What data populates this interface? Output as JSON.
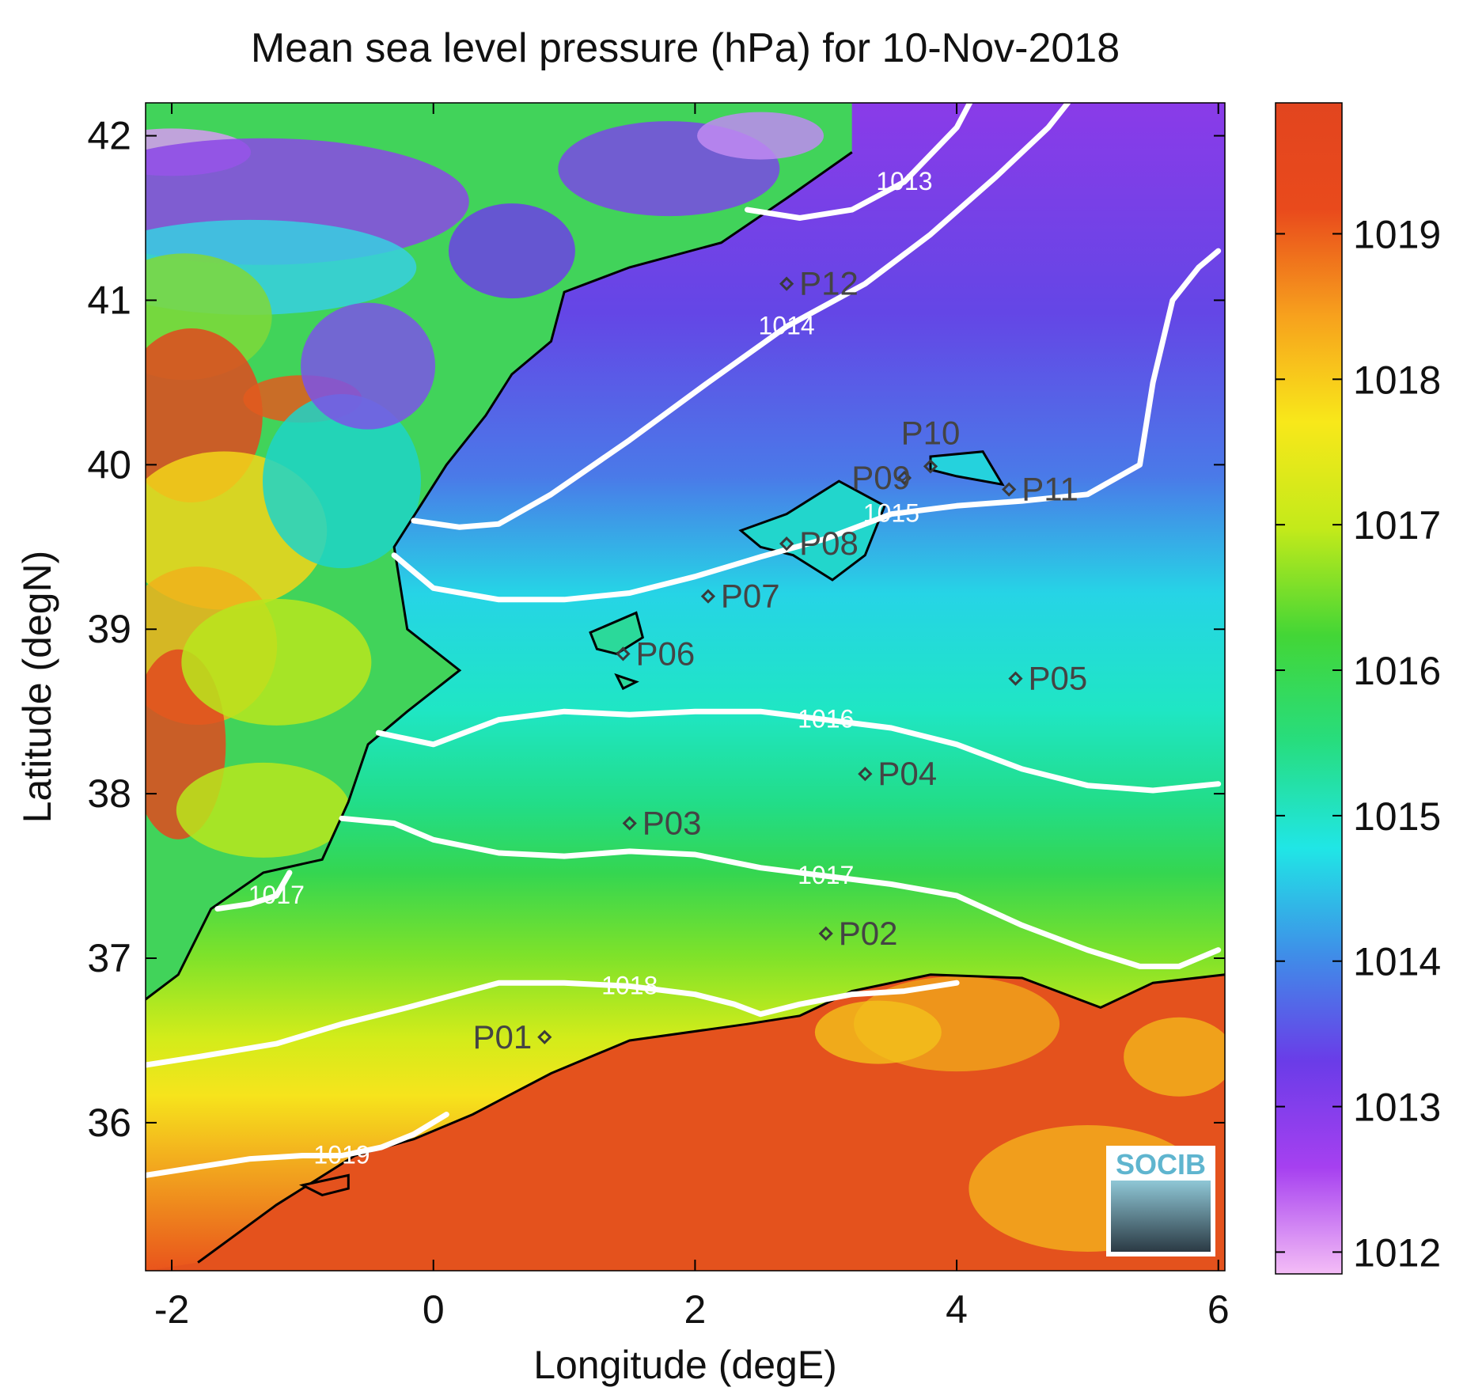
{
  "title": "Mean sea level pressure (hPa) for 10-Nov-2018",
  "xlabel": "Longitude (degE)",
  "ylabel": "Latitude (degN)",
  "x_ticks": [
    "-2",
    "0",
    "2",
    "4",
    "6"
  ],
  "y_ticks": [
    "42",
    "41",
    "40",
    "39",
    "38",
    "37",
    "36"
  ],
  "colorbar": {
    "ticks": [
      "1019",
      "1018",
      "1017",
      "1016",
      "1015",
      "1014",
      "1013",
      "1012"
    ],
    "range": [
      1011.85,
      1019.9
    ],
    "colors": [
      "#f4bdf6",
      "#a640f0",
      "#6a3ce8",
      "#3f8ee8",
      "#20e6e6",
      "#27dd7e",
      "#43d636",
      "#c3ea1a",
      "#f8e81a",
      "#f7a11d",
      "#e94a1c",
      "#e2451f"
    ]
  },
  "chart_data": {
    "type": "map",
    "title": "Mean sea level pressure (hPa) for 10-Nov-2018",
    "xlabel": "Longitude (degE)",
    "ylabel": "Latitude (degN)",
    "xlim": [
      -2.2,
      6.05
    ],
    "ylim": [
      35.1,
      42.2
    ],
    "contours": [
      {
        "level": "1013",
        "points": [
          [
            2.4,
            41.55
          ],
          [
            2.8,
            41.5
          ],
          [
            3.2,
            41.55
          ],
          [
            3.6,
            41.72
          ],
          [
            4.0,
            42.05
          ],
          [
            4.1,
            42.2
          ]
        ]
      },
      {
        "level": "1014",
        "points": [
          [
            -0.15,
            39.66
          ],
          [
            0.2,
            39.62
          ],
          [
            0.5,
            39.64
          ],
          [
            0.9,
            39.82
          ],
          [
            1.5,
            40.15
          ],
          [
            2.1,
            40.5
          ],
          [
            2.7,
            40.84
          ],
          [
            3.3,
            41.1
          ],
          [
            3.8,
            41.4
          ],
          [
            4.3,
            41.75
          ],
          [
            4.7,
            42.05
          ],
          [
            4.85,
            42.2
          ]
        ]
      },
      {
        "level": "1015",
        "points": [
          [
            -0.3,
            39.45
          ],
          [
            0,
            39.25
          ],
          [
            0.5,
            39.18
          ],
          [
            1.0,
            39.18
          ],
          [
            1.5,
            39.22
          ],
          [
            2.0,
            39.32
          ],
          [
            2.5,
            39.44
          ],
          [
            3.0,
            39.55
          ],
          [
            3.5,
            39.7
          ],
          [
            4.0,
            39.75
          ],
          [
            4.5,
            39.78
          ],
          [
            5.0,
            39.82
          ],
          [
            5.4,
            40.0
          ],
          [
            5.5,
            40.5
          ],
          [
            5.65,
            41.0
          ],
          [
            5.85,
            41.2
          ],
          [
            6.0,
            41.3
          ]
        ]
      },
      {
        "level": "1016",
        "points": [
          [
            -0.42,
            38.37
          ],
          [
            0,
            38.3
          ],
          [
            0.5,
            38.45
          ],
          [
            1.0,
            38.5
          ],
          [
            1.5,
            38.48
          ],
          [
            2.0,
            38.5
          ],
          [
            2.5,
            38.5
          ],
          [
            3.0,
            38.45
          ],
          [
            3.5,
            38.4
          ],
          [
            4.0,
            38.3
          ],
          [
            4.5,
            38.15
          ],
          [
            5.0,
            38.05
          ],
          [
            5.5,
            38.02
          ],
          [
            6.0,
            38.06
          ]
        ]
      },
      {
        "level": "1017",
        "points": [
          [
            -0.7,
            37.85
          ],
          [
            -0.3,
            37.82
          ],
          [
            0,
            37.72
          ],
          [
            0.5,
            37.64
          ],
          [
            1.0,
            37.62
          ],
          [
            1.5,
            37.65
          ],
          [
            2.0,
            37.63
          ],
          [
            2.5,
            37.55
          ],
          [
            3.0,
            37.5
          ],
          [
            3.5,
            37.45
          ],
          [
            4.0,
            37.38
          ],
          [
            4.5,
            37.2
          ],
          [
            5.0,
            37.05
          ],
          [
            5.4,
            36.95
          ],
          [
            5.7,
            36.95
          ],
          [
            6.0,
            37.05
          ]
        ]
      },
      {
        "level": "1017",
        "points": [
          [
            -1.65,
            37.3
          ],
          [
            -1.4,
            37.33
          ],
          [
            -1.2,
            37.38
          ],
          [
            -1.1,
            37.52
          ]
        ]
      },
      {
        "level": "1018",
        "points": [
          [
            -2.2,
            36.35
          ],
          [
            -1.8,
            36.4
          ],
          [
            -1.2,
            36.48
          ],
          [
            -0.7,
            36.6
          ],
          [
            -0.2,
            36.7
          ],
          [
            0.5,
            36.85
          ],
          [
            1.0,
            36.85
          ],
          [
            1.5,
            36.83
          ],
          [
            2.0,
            36.78
          ],
          [
            2.3,
            36.72
          ],
          [
            2.5,
            36.66
          ],
          [
            2.8,
            36.72
          ],
          [
            3.2,
            36.78
          ],
          [
            3.6,
            36.8
          ],
          [
            4.0,
            36.85
          ]
        ]
      },
      {
        "level": "1019",
        "points": [
          [
            -2.2,
            35.68
          ],
          [
            -1.8,
            35.73
          ],
          [
            -1.4,
            35.78
          ],
          [
            -1.0,
            35.8
          ],
          [
            -0.7,
            35.8
          ],
          [
            -0.4,
            35.85
          ],
          [
            -0.15,
            35.93
          ],
          [
            0.1,
            36.05
          ]
        ]
      }
    ],
    "stations": [
      {
        "label": "P01",
        "lon": 0.85,
        "lat": 36.52
      },
      {
        "label": "P02",
        "lon": 3.0,
        "lat": 37.15
      },
      {
        "label": "P03",
        "lon": 1.5,
        "lat": 37.82
      },
      {
        "label": "P04",
        "lon": 3.3,
        "lat": 38.12
      },
      {
        "label": "P05",
        "lon": 4.45,
        "lat": 38.7
      },
      {
        "label": "P06",
        "lon": 1.45,
        "lat": 38.85
      },
      {
        "label": "P07",
        "lon": 2.1,
        "lat": 39.2
      },
      {
        "label": "P08",
        "lon": 2.7,
        "lat": 39.52
      },
      {
        "label": "P09",
        "lon": 3.6,
        "lat": 39.92
      },
      {
        "label": "P10",
        "lon": 3.8,
        "lat": 39.99
      },
      {
        "label": "P11",
        "lon": 4.4,
        "lat": 39.85
      },
      {
        "label": "P12",
        "lon": 2.7,
        "lat": 41.1
      }
    ]
  },
  "logo_text": "SOCIB"
}
